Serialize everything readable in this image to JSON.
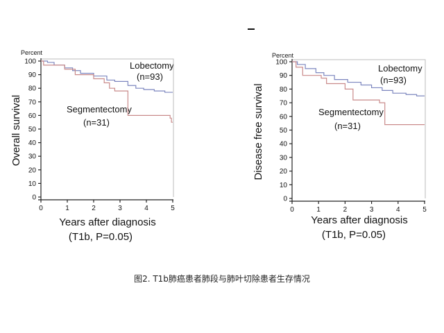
{
  "caption": "图2. T1b肺癌患者肺段与肺叶切除患者生存情况",
  "chart_data": [
    {
      "type": "line",
      "title": "",
      "ylabel": "Overall survival",
      "y_unit": "Percent",
      "xlabel": "Years after diagnosis",
      "subtitle": "(T1b, P=0.05)",
      "xlim": [
        0,
        5
      ],
      "ylim": [
        0,
        100
      ],
      "x_ticks": [
        0,
        1,
        2,
        3,
        4,
        5
      ],
      "y_ticks": [
        0,
        10,
        20,
        30,
        40,
        50,
        60,
        70,
        80,
        90,
        100
      ],
      "series": [
        {
          "name": "Lobectomy",
          "count_label": "(n=93)",
          "color": "#7c86bf",
          "step_points": [
            [
              0,
              100
            ],
            [
              0.25,
              99
            ],
            [
              0.5,
              97
            ],
            [
              0.9,
              95
            ],
            [
              1.2,
              93
            ],
            [
              1.5,
              91
            ],
            [
              2.0,
              89
            ],
            [
              2.5,
              86
            ],
            [
              2.8,
              85
            ],
            [
              3.3,
              82
            ],
            [
              3.6,
              80
            ],
            [
              3.9,
              79
            ],
            [
              4.3,
              78
            ],
            [
              4.7,
              77
            ],
            [
              5.0,
              77
            ]
          ]
        },
        {
          "name": "Segmentectomy",
          "count_label": "(n=31)",
          "color": "#c98a8a",
          "step_points": [
            [
              0,
              100
            ],
            [
              0.1,
              97
            ],
            [
              0.9,
              94
            ],
            [
              1.3,
              90
            ],
            [
              2.0,
              87
            ],
            [
              2.4,
              84
            ],
            [
              2.6,
              80
            ],
            [
              2.8,
              78
            ],
            [
              3.3,
              60
            ],
            [
              4.9,
              58
            ],
            [
              4.95,
              55
            ],
            [
              5.0,
              55
            ]
          ]
        }
      ]
    },
    {
      "type": "line",
      "title": "",
      "ylabel": "Disease free survival",
      "y_unit": "Percent",
      "xlabel": "Years after diagnosis",
      "subtitle": "(T1b, P=0.05)",
      "xlim": [
        0,
        5
      ],
      "ylim": [
        0,
        100
      ],
      "x_ticks": [
        0,
        1,
        2,
        3,
        4,
        5
      ],
      "y_ticks": [
        0,
        10,
        20,
        30,
        40,
        50,
        60,
        70,
        80,
        90,
        100
      ],
      "series": [
        {
          "name": "Lobectomy",
          "count_label": "(n=93)",
          "color": "#7c86bf",
          "step_points": [
            [
              0,
              100
            ],
            [
              0.2,
              98
            ],
            [
              0.5,
              95
            ],
            [
              0.9,
              92
            ],
            [
              1.2,
              90
            ],
            [
              1.6,
              87
            ],
            [
              2.1,
              85
            ],
            [
              2.6,
              83
            ],
            [
              3.0,
              81
            ],
            [
              3.4,
              79
            ],
            [
              3.8,
              77
            ],
            [
              4.3,
              76
            ],
            [
              4.7,
              75
            ],
            [
              5.0,
              75
            ]
          ]
        },
        {
          "name": "Segmentectomy",
          "count_label": "(n=31)",
          "color": "#c98a8a",
          "step_points": [
            [
              0,
              100
            ],
            [
              0.15,
              96
            ],
            [
              0.4,
              90
            ],
            [
              1.1,
              88
            ],
            [
              1.3,
              84
            ],
            [
              2.0,
              80
            ],
            [
              2.3,
              72
            ],
            [
              3.3,
              70
            ],
            [
              3.5,
              54
            ],
            [
              5.0,
              54
            ]
          ]
        }
      ]
    }
  ]
}
